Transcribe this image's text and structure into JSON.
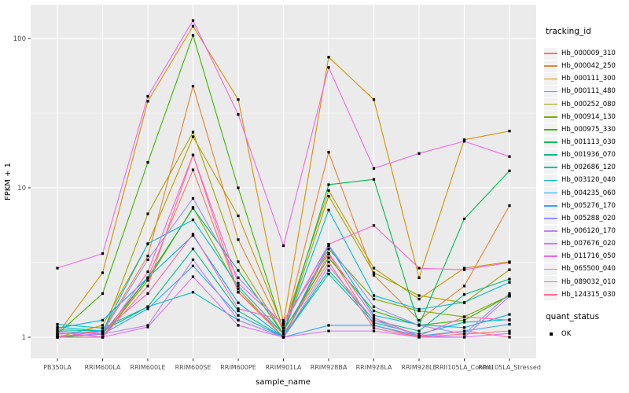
{
  "figure": {
    "background": "#FFFFFF",
    "panel_background": "#EBEBEB",
    "grid_color": "#FFFFFF",
    "tick_text_color": "#4D4D4D",
    "axis_title_color": "#000000",
    "point_color": "#000000"
  },
  "chart_data": {
    "type": "line",
    "title": "",
    "xlabel": "sample_name",
    "ylabel": "FPKM + 1",
    "y_scale": "log10",
    "ylim": [
      0.72,
      160
    ],
    "y_ticks": [
      1,
      10,
      100
    ],
    "y_tick_labels": [
      "1",
      "10",
      "100"
    ],
    "y_minor_ticks": [
      3.162,
      31.62
    ],
    "grid": true,
    "legend_position": "right",
    "categories": [
      "PB350LA",
      "RRIM600LA",
      "RRIM600LE",
      "RRIM600SE",
      "RRIM600PE",
      "RRIM901LA",
      "RRIM928BA",
      "RRIM928LA",
      "RRIM928LE",
      "RRII105LA_Control",
      "RRII105LA_Stressed"
    ],
    "series": [
      {
        "name": "Hb_000009_310",
        "color": "#F8766D",
        "values": [
          1.0,
          1.0,
          2.5,
          13.2,
          2.0,
          1.0,
          3.6,
          1.2,
          1.0,
          1.05,
          1.1
        ]
      },
      {
        "name": "Hb_000042_250",
        "color": "#EA8331",
        "values": [
          1.05,
          1.1,
          3.5,
          48,
          4.5,
          1.1,
          17.3,
          2.6,
          1.3,
          2.2,
          7.6
        ]
      },
      {
        "name": "Hb_000111_300",
        "color": "#D89000",
        "values": [
          1.05,
          2.7,
          38,
          121,
          39,
          1.25,
          75,
          39,
          2.5,
          21,
          24
        ]
      },
      {
        "name": "Hb_000111_480",
        "color": "#C09B00",
        "values": [
          1.0,
          1.2,
          4.2,
          22,
          6.5,
          1.15,
          9.6,
          2.9,
          1.8,
          2.9,
          3.2
        ]
      },
      {
        "name": "Hb_000252_080",
        "color": "#A3A500",
        "values": [
          1.0,
          1.05,
          6.7,
          23.6,
          3.2,
          1.05,
          8.8,
          2.7,
          1.9,
          1.7,
          2.83
        ]
      },
      {
        "name": "Hb_000914_130",
        "color": "#7CAE00",
        "values": [
          1.0,
          1.0,
          2.4,
          7.4,
          2.1,
          1.0,
          3.9,
          1.8,
          1.5,
          1.37,
          1.9
        ]
      },
      {
        "name": "Hb_000975_330",
        "color": "#39B600",
        "values": [
          1.05,
          1.96,
          14.8,
          105,
          10,
          1.1,
          3.4,
          1.5,
          1.2,
          1.3,
          1.9
        ]
      },
      {
        "name": "Hb_001113_030",
        "color": "#00BB4E",
        "values": [
          1.0,
          1.05,
          2.5,
          7.3,
          2.8,
          1.05,
          10.5,
          11.4,
          1.2,
          6.2,
          13
        ]
      },
      {
        "name": "Hb_001936_070",
        "color": "#00C087",
        "values": [
          1.12,
          1.1,
          1.6,
          3.9,
          1.5,
          1.0,
          2.8,
          1.3,
          1.1,
          1.93,
          2.45
        ]
      },
      {
        "name": "Hb_002686_120",
        "color": "#00C0B8",
        "values": [
          1.22,
          1.15,
          1.6,
          2.0,
          1.3,
          1.0,
          2.65,
          1.25,
          1.05,
          1.26,
          1.31
        ]
      },
      {
        "name": "Hb_003120_040",
        "color": "#00BCD8",
        "values": [
          1.17,
          1.1,
          4.23,
          6.1,
          2.2,
          1.05,
          7.1,
          1.9,
          1.54,
          1.71,
          2.33
        ]
      },
      {
        "name": "Hb_004235_060",
        "color": "#00B0F6",
        "values": [
          1.15,
          1.3,
          2.5,
          4.8,
          1.7,
          1.0,
          4.1,
          1.4,
          1.21,
          1.16,
          1.42
        ]
      },
      {
        "name": "Hb_005276_170",
        "color": "#35A2FF",
        "values": [
          1.1,
          1.05,
          1.55,
          3.0,
          1.4,
          1.0,
          1.2,
          1.2,
          1.02,
          1.1,
          1.22
        ]
      },
      {
        "name": "Hb_005288_020",
        "color": "#9590FF",
        "values": [
          1.05,
          1.08,
          3.3,
          8.5,
          2.5,
          1.2,
          4.14,
          1.6,
          1.2,
          1.05,
          1.96
        ]
      },
      {
        "name": "Hb_006120_170",
        "color": "#BC81FF",
        "values": [
          1.02,
          1.05,
          1.2,
          3.3,
          1.3,
          1.0,
          3.0,
          1.3,
          1.02,
          1.0,
          1.88
        ]
      },
      {
        "name": "Hb_007676_020",
        "color": "#DC71FA",
        "values": [
          1.08,
          1.0,
          1.17,
          2.54,
          1.2,
          1.0,
          1.1,
          1.1,
          1.0,
          1.0,
          1.06
        ]
      },
      {
        "name": "Hb_011716_050",
        "color": "#F166E8",
        "values": [
          2.9,
          3.63,
          41,
          132,
          31,
          4.1,
          64,
          13.5,
          17,
          20.5,
          16.2
        ]
      },
      {
        "name": "Hb_065500_040",
        "color": "#FD61D3",
        "values": [
          1.0,
          1.0,
          2.74,
          16.6,
          2.3,
          1.21,
          4.2,
          5.6,
          2.9,
          2.83,
          3.16
        ]
      },
      {
        "name": "Hb_089032_010",
        "color": "#FF62B6",
        "values": [
          1.0,
          1.1,
          1.96,
          4.9,
          1.55,
          1.3,
          3.66,
          1.35,
          1.02,
          1.37,
          1.3
        ]
      },
      {
        "name": "Hb_124315_030",
        "color": "#FF6C91",
        "values": [
          1.0,
          1.0,
          2.2,
          16.6,
          2.0,
          1.05,
          3.19,
          1.15,
          1.0,
          1.1,
          1.0
        ]
      }
    ],
    "legend": {
      "color_legend_title": "tracking_id",
      "shape_legend_title": "quant_status",
      "shape_items": [
        {
          "label": "OK",
          "marker": "filled-square"
        }
      ]
    }
  }
}
